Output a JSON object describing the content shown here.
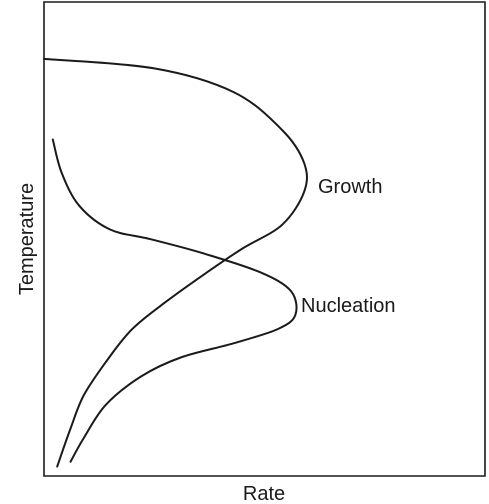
{
  "chart_data": {
    "type": "line",
    "title": "",
    "xlabel": "Rate",
    "ylabel": "Temperature",
    "xlim": [
      0,
      100
    ],
    "ylim": [
      0,
      100
    ],
    "grid": false,
    "legend": "none",
    "series": [
      {
        "label": "Growth",
        "x": [
          0,
          25,
          43,
          54,
          59,
          59,
          54,
          45,
          37,
          28,
          20,
          14,
          9,
          6,
          3
        ],
        "y": [
          88,
          86,
          81,
          73,
          66,
          60,
          53,
          48,
          43,
          37,
          31,
          24,
          17,
          10,
          2
        ]
      },
      {
        "label": "Nucleation",
        "x": [
          2,
          4,
          8,
          15,
          24,
          36,
          49,
          56,
          57,
          53,
          43,
          31,
          22,
          14,
          9,
          6
        ],
        "y": [
          71,
          64,
          57,
          52,
          50,
          47,
          43,
          39,
          34,
          31,
          28,
          25,
          21,
          15,
          8,
          3
        ]
      }
    ],
    "color": "#1a1a1a"
  }
}
